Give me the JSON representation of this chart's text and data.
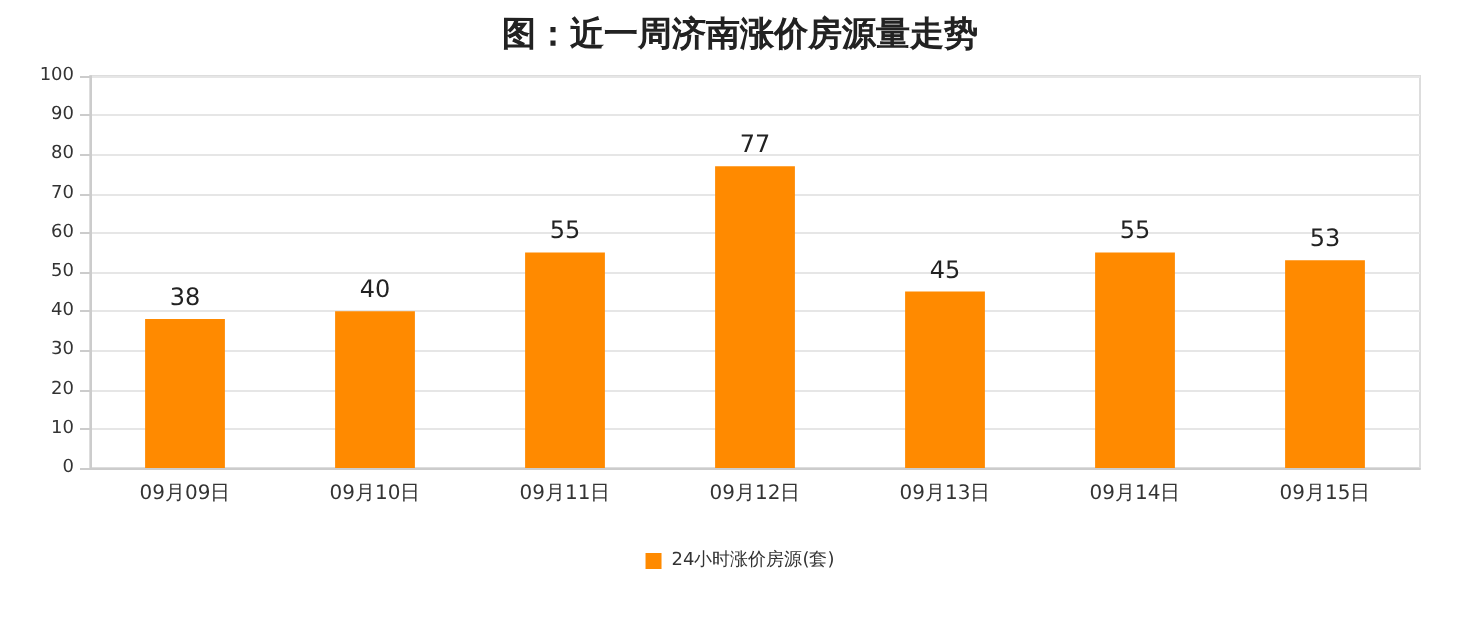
{
  "chart_data": {
    "type": "bar",
    "title": "图：近一周济南涨价房源量走势",
    "categories": [
      "09月09日",
      "09月10日",
      "09月11日",
      "09月12日",
      "09月13日",
      "09月14日",
      "09月15日"
    ],
    "series": [
      {
        "name": "24小时涨价房源(套)",
        "color": "#ff8a00",
        "values": [
          38,
          40,
          55,
          77,
          45,
          55,
          53
        ]
      }
    ],
    "ylim": [
      0,
      100
    ],
    "yticks": [
      0,
      10,
      20,
      30,
      40,
      50,
      60,
      70,
      80,
      90,
      100
    ],
    "grid": "y",
    "legend": "bottom",
    "data_labels": true
  }
}
